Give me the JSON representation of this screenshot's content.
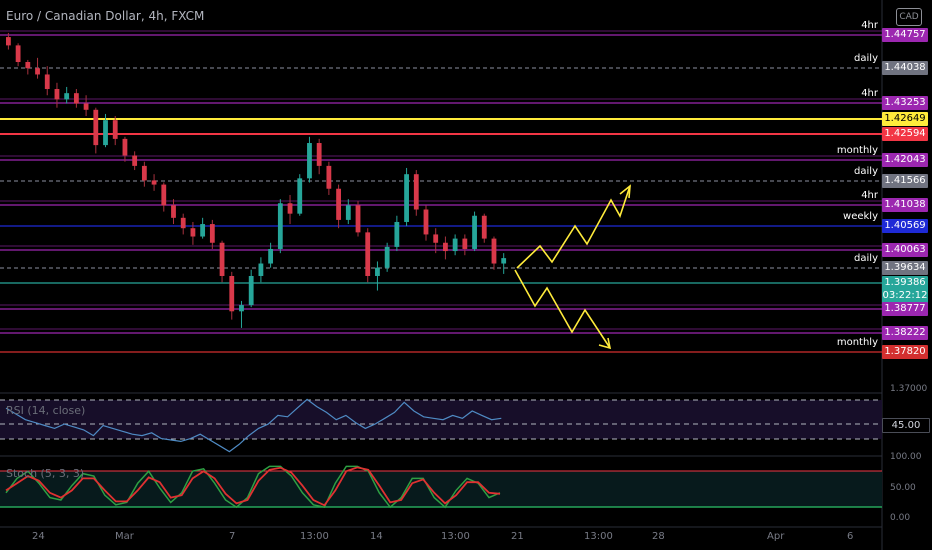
{
  "header": {
    "symbol_title": "Euro / Canadian Dollar, 4h, FXCM",
    "currency_badge": "CAD"
  },
  "levels": [
    {
      "label": "4hr",
      "price": "1.44757",
      "color": "#9c27b0",
      "text_color": "#ffffff",
      "line_style": "solid"
    },
    {
      "label": "daily",
      "price": "1.44038",
      "color": "#707380",
      "text_color": "#ffffff",
      "line_style": "dashed"
    },
    {
      "label": "4hr",
      "price": "1.43253",
      "color": "#9c27b0",
      "text_color": "#ffffff",
      "line_style": "solid"
    },
    {
      "label": "",
      "price": "1.42649",
      "color": "#ffeb3b",
      "text_color": "#000000",
      "line_style": "solid"
    },
    {
      "label": "",
      "price": "1.42594",
      "color": "#f23645",
      "text_color": "#ffffff",
      "line_style": "solid"
    },
    {
      "label": "monthly",
      "price": "1.42043",
      "color": "#9c27b0",
      "text_color": "#ffffff",
      "line_style": "solid"
    },
    {
      "label": "daily",
      "price": "1.41566",
      "color": "#707380",
      "text_color": "#ffffff",
      "line_style": "dashed"
    },
    {
      "label": "4hr",
      "price": "1.41038",
      "color": "#9c27b0",
      "text_color": "#ffffff",
      "line_style": "solid"
    },
    {
      "label": "weekly",
      "price": "1.40569",
      "color": "#1e2ad6",
      "text_color": "#ffffff",
      "line_style": "solid"
    },
    {
      "label": "",
      "price": "1.40063",
      "color": "#9c27b0",
      "text_color": "#ffffff",
      "line_style": "solid"
    },
    {
      "label": "daily",
      "price": "1.39634",
      "color": "#707380",
      "text_color": "#ffffff",
      "line_style": "dashed"
    },
    {
      "label": "",
      "price": "1.39386",
      "color": "#26a69a",
      "text_color": "#ffffff",
      "line_style": "solid"
    },
    {
      "label": "",
      "price": "1.38777",
      "color": "#9c27b0",
      "text_color": "#ffffff",
      "line_style": "solid"
    },
    {
      "label": "",
      "price": "1.38222",
      "color": "#9c27b0",
      "text_color": "#ffffff",
      "line_style": "solid"
    },
    {
      "label": "monthly",
      "price": "1.37820",
      "color": "#d32f2f",
      "text_color": "#ffffff",
      "line_style": "solid"
    }
  ],
  "current_price": {
    "price": "1.39386",
    "countdown": "03:22:12",
    "color": "#26a69a"
  },
  "price_scale": {
    "extra_tick": "1.37000"
  },
  "rsi": {
    "label": "RSI (14, close)",
    "value": "45.00"
  },
  "stoch": {
    "label": "Stoch (5, 3, 3)",
    "ticks": [
      "100.00",
      "50.00",
      "0.00"
    ]
  },
  "time_axis": {
    "labels": [
      "24",
      "Mar",
      "7",
      "13:00",
      "14",
      "13:00",
      "21",
      "13:00",
      "28",
      "Apr",
      "6"
    ]
  },
  "chart_data": {
    "type": "candlestick",
    "title": "Euro / Canadian Dollar, 4h, FXCM",
    "xlabel": "",
    "ylabel": "",
    "grid": false,
    "ylim": [
      1.37,
      1.45
    ],
    "candles_ohlc": [
      [
        1.447,
        1.448,
        1.444,
        1.445
      ],
      [
        1.445,
        1.4455,
        1.44,
        1.441
      ],
      [
        1.441,
        1.4415,
        1.438,
        1.4395
      ],
      [
        1.4395,
        1.442,
        1.437,
        1.438
      ],
      [
        1.438,
        1.44,
        1.433,
        1.4345
      ],
      [
        1.4345,
        1.436,
        1.43,
        1.432
      ],
      [
        1.432,
        1.435,
        1.431,
        1.4335
      ],
      [
        1.4335,
        1.4345,
        1.43,
        1.431
      ],
      [
        1.431,
        1.433,
        1.428,
        1.4295
      ],
      [
        1.4295,
        1.43,
        1.419,
        1.421
      ],
      [
        1.421,
        1.4285,
        1.4205,
        1.427
      ],
      [
        1.427,
        1.428,
        1.421,
        1.4225
      ],
      [
        1.4225,
        1.423,
        1.417,
        1.4185
      ],
      [
        1.4185,
        1.4195,
        1.415,
        1.416
      ],
      [
        1.416,
        1.417,
        1.411,
        1.4125
      ],
      [
        1.4125,
        1.414,
        1.41,
        1.4115
      ],
      [
        1.4115,
        1.412,
        1.405,
        1.4065
      ],
      [
        1.4065,
        1.408,
        1.402,
        1.4035
      ],
      [
        1.4035,
        1.4045,
        1.3995,
        1.401
      ],
      [
        1.401,
        1.4025,
        1.397,
        1.399
      ],
      [
        1.399,
        1.4035,
        1.3985,
        1.402
      ],
      [
        1.402,
        1.403,
        1.396,
        1.3975
      ],
      [
        1.3975,
        1.398,
        1.388,
        1.3895
      ],
      [
        1.3895,
        1.3905,
        1.379,
        1.381
      ],
      [
        1.381,
        1.3835,
        1.377,
        1.3825
      ],
      [
        1.3825,
        1.391,
        1.382,
        1.3895
      ],
      [
        1.3895,
        1.394,
        1.388,
        1.3925
      ],
      [
        1.3925,
        1.3975,
        1.3915,
        1.396
      ],
      [
        1.396,
        1.408,
        1.395,
        1.407
      ],
      [
        1.407,
        1.409,
        1.402,
        1.4045
      ],
      [
        1.4045,
        1.414,
        1.404,
        1.413
      ],
      [
        1.413,
        1.423,
        1.412,
        1.4215
      ],
      [
        1.4215,
        1.4225,
        1.414,
        1.416
      ],
      [
        1.416,
        1.417,
        1.409,
        1.4105
      ],
      [
        1.4105,
        1.4115,
        1.401,
        1.403
      ],
      [
        1.403,
        1.408,
        1.402,
        1.4065
      ],
      [
        1.4065,
        1.4075,
        1.399,
        1.4
      ],
      [
        1.4,
        1.401,
        1.388,
        1.3895
      ],
      [
        1.3895,
        1.393,
        1.386,
        1.3915
      ],
      [
        1.3915,
        1.3975,
        1.3905,
        1.3965
      ],
      [
        1.3965,
        1.404,
        1.3955,
        1.4025
      ],
      [
        1.4025,
        1.4155,
        1.4015,
        1.414
      ],
      [
        1.414,
        1.415,
        1.404,
        1.4055
      ],
      [
        1.4055,
        1.4065,
        1.398,
        1.3995
      ],
      [
        1.3995,
        1.401,
        1.395,
        1.3975
      ],
      [
        1.3975,
        1.399,
        1.3935,
        1.3955
      ],
      [
        1.3955,
        1.3995,
        1.3945,
        1.3985
      ],
      [
        1.3985,
        1.3995,
        1.3945,
        1.396
      ],
      [
        1.396,
        1.405,
        1.3955,
        1.404
      ],
      [
        1.404,
        1.4045,
        1.3975,
        1.3985
      ],
      [
        1.3985,
        1.399,
        1.391,
        1.3925
      ],
      [
        1.3925,
        1.395,
        1.39,
        1.3938
      ]
    ],
    "rsi_series": [
      52,
      48,
      44,
      42,
      40,
      38,
      41,
      39,
      37,
      33,
      40,
      38,
      36,
      34,
      33,
      35,
      31,
      30,
      29,
      31,
      34,
      30,
      26,
      22,
      27,
      33,
      38,
      41,
      47,
      46,
      52,
      58,
      53,
      49,
      44,
      47,
      42,
      38,
      41,
      45,
      49,
      56,
      50,
      46,
      45,
      44,
      47,
      45,
      50,
      47,
      44,
      45
    ],
    "stoch_k": [
      40,
      70,
      85,
      60,
      30,
      25,
      55,
      80,
      75,
      35,
      15,
      20,
      60,
      85,
      50,
      20,
      40,
      85,
      90,
      60,
      25,
      10,
      30,
      80,
      95,
      95,
      75,
      40,
      15,
      10,
      60,
      95,
      95,
      85,
      40,
      10,
      30,
      70,
      70,
      30,
      10,
      45,
      70,
      60,
      30,
      40
    ],
    "stoch_d": [
      45,
      60,
      75,
      65,
      40,
      30,
      45,
      70,
      70,
      45,
      22,
      22,
      45,
      72,
      62,
      30,
      35,
      70,
      85,
      70,
      38,
      18,
      25,
      65,
      88,
      92,
      82,
      55,
      25,
      14,
      45,
      85,
      93,
      88,
      55,
      20,
      25,
      60,
      68,
      40,
      18,
      35,
      62,
      62,
      40,
      38
    ]
  }
}
